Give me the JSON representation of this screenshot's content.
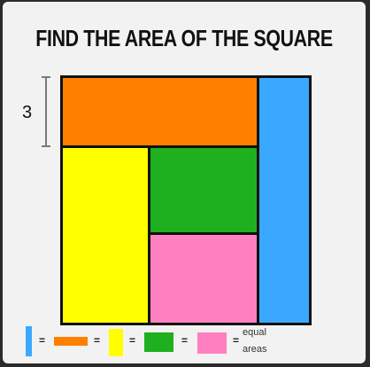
{
  "title": "FIND THE AREA OF THE SQUARE",
  "dimension_label": "3",
  "colors": {
    "orange": "#ff8000",
    "blue": "#3aa8ff",
    "yellow": "#ffff00",
    "green": "#1eb01e",
    "pink": "#ff80c0",
    "border": "#111111"
  },
  "legend": {
    "equals": "=",
    "equal_text_line1": "equal",
    "equal_text_line2": "areas"
  }
}
